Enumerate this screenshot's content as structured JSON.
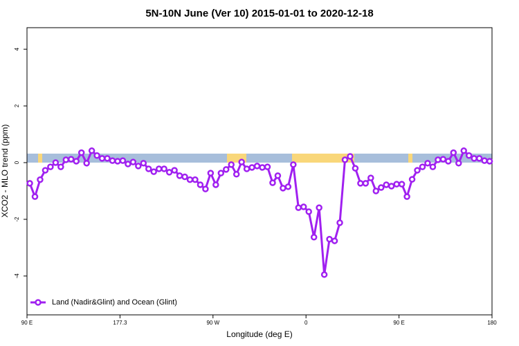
{
  "chart_data": {
    "type": "line",
    "title": "5N-10N June (Ver 10)   2015-01-01 to 2020-12-18",
    "xlabel": "Longitude (deg E)",
    "ylabel": "XCO2 - MLO trend (ppm)",
    "xlim": [
      87.3,
      537.3
    ],
    "ylim": [
      -5.37,
      4.76
    ],
    "xticks": [
      {
        "value": 87.3,
        "label": "90 E"
      },
      177.3,
      {
        "value": 267.3,
        "label": "90 W"
      },
      {
        "value": 357.3,
        "label": "0"
      },
      {
        "value": 447.3,
        "label": "90 E"
      },
      {
        "value": 537.3,
        "label": "180"
      }
    ],
    "yticks": [
      -4,
      -2,
      0,
      2,
      4
    ],
    "legend": "bottom-left",
    "x": [
      90,
      95,
      100,
      105,
      110,
      115,
      120,
      125,
      130,
      135,
      140,
      145,
      150,
      155,
      160,
      165,
      170,
      175,
      180,
      185,
      190,
      195,
      200,
      205,
      210,
      215,
      220,
      225,
      230,
      235,
      240,
      245,
      250,
      255,
      260,
      265,
      270,
      275,
      280,
      285,
      290,
      295,
      300,
      305,
      310,
      315,
      320,
      325,
      330,
      335,
      340,
      345,
      350,
      355,
      360,
      365,
      370,
      375,
      380,
      385,
      390,
      395,
      400,
      405,
      410,
      415,
      420,
      425,
      430,
      435,
      440,
      445,
      450,
      455,
      460,
      465,
      470,
      475,
      480,
      485,
      490,
      495,
      500,
      505,
      510,
      515,
      520,
      525,
      530,
      535
    ],
    "series": [
      {
        "name": "Land (Nadir&Glint) and Ocean (Glint)",
        "color": "#a020f0",
        "values": [
          -0.73,
          -1.2,
          -0.6,
          -0.27,
          -0.15,
          0,
          -0.15,
          0.1,
          0.12,
          0.05,
          0.35,
          -0.02,
          0.42,
          0.25,
          0.15,
          0.15,
          0.07,
          0.05,
          0.07,
          -0.05,
          0.02,
          -0.12,
          -0.02,
          -0.22,
          -0.32,
          -0.22,
          -0.22,
          -0.34,
          -0.27,
          -0.46,
          -0.5,
          -0.6,
          -0.6,
          -0.78,
          -0.93,
          -0.37,
          -0.78,
          -0.37,
          -0.24,
          -0.07,
          -0.41,
          0.02,
          -0.22,
          -0.17,
          -0.12,
          -0.17,
          -0.15,
          -0.71,
          -0.46,
          -0.9,
          -0.85,
          -0.07,
          -1.59,
          -1.56,
          -1.73,
          -2.63,
          -1.59,
          -3.95,
          -2.7,
          -2.76,
          -2.12,
          0.1,
          0.22,
          -0.2,
          -0.73,
          -0.73,
          -0.54,
          -1.0,
          -0.88,
          -0.78,
          -0.83,
          -0.76,
          -0.76,
          -1.2,
          -0.59,
          -0.27,
          -0.15,
          -0.02,
          -0.15,
          0.1,
          0.12,
          0.05,
          0.35,
          -0.02,
          0.42,
          0.25,
          0.15,
          0.15,
          0.07,
          0.05
        ]
      }
    ]
  }
}
